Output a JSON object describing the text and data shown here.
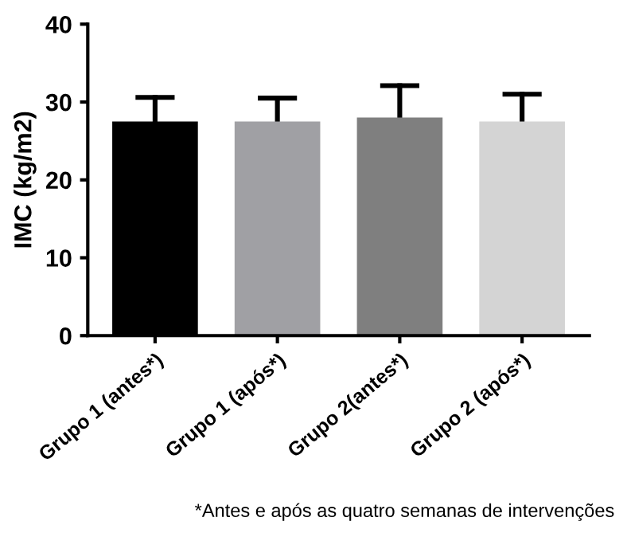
{
  "chart_data": {
    "type": "bar",
    "ylabel": "IMC (kg/m2)",
    "categories": [
      "Grupo 1 (antes*)",
      "Grupo 1 (após*)",
      "Grupo 2(antes*)",
      "Grupo 2 (após*)"
    ],
    "values": [
      27.5,
      27.5,
      28.0,
      27.5
    ],
    "colors": [
      "#000000",
      "#a0a0a4",
      "#7f7f7f",
      "#d4d4d4"
    ],
    "errors": [
      [
        27.5,
        30.6
      ],
      [
        27.5,
        30.5
      ],
      [
        28.0,
        32.1
      ],
      [
        27.5,
        31.0
      ]
    ],
    "ylim": [
      0,
      40
    ],
    "yticks": [
      0,
      10,
      20,
      30,
      40
    ],
    "grid": false,
    "annotations": [
      "*Antes e após as quatro semanas de intervenções"
    ]
  }
}
